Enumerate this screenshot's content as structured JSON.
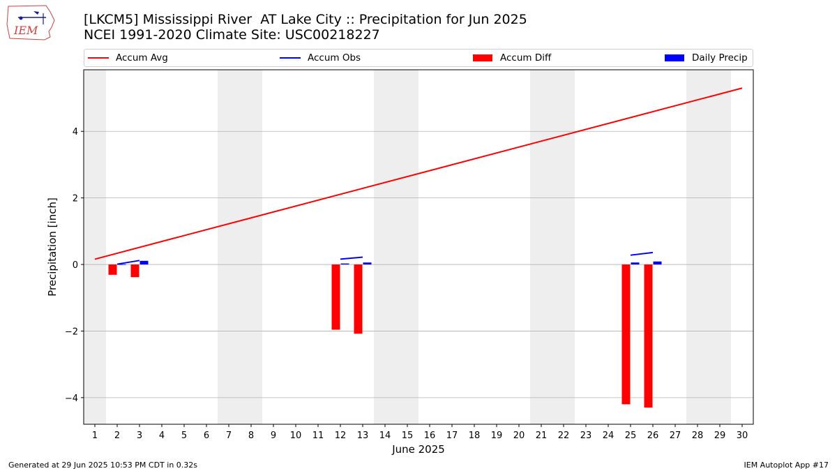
{
  "header": {
    "title_line1": "[LKCM5] Mississippi River  AT Lake City :: Precipitation for Jun 2025",
    "title_line2": "NCEI 1991-2020 Climate Site: USC00218227",
    "logo_text": "IEM"
  },
  "footer": {
    "generated": "Generated at 29 Jun 2025 10:53 PM CDT in 0.32s",
    "app": "IEM Autoplot App #17"
  },
  "colors": {
    "accum_avg": "#ff0000",
    "accum_obs": "#0000ff",
    "accum_diff": "#ff0000",
    "daily_precip": "#0000ff",
    "weekend_band": "#eeeeee",
    "grid": "#b0b0b0"
  },
  "chart_data": {
    "type": "bar",
    "title": "[LKCM5] Mississippi River  AT Lake City :: Precipitation for Jun 2025",
    "subtitle": "NCEI 1991-2020 Climate Site: USC00218227",
    "xlabel": "June 2025",
    "ylabel": "Precipitation [inch]",
    "xlim": [
      0.5,
      30.5
    ],
    "ylim": [
      -4.8,
      5.85
    ],
    "grid": "horizontal",
    "legend_position": "top",
    "x_ticks": [
      1,
      2,
      3,
      4,
      5,
      6,
      7,
      8,
      9,
      10,
      11,
      12,
      13,
      14,
      15,
      16,
      17,
      18,
      19,
      20,
      21,
      22,
      23,
      24,
      25,
      26,
      27,
      28,
      29,
      30
    ],
    "y_ticks": [
      -4,
      -2,
      0,
      2,
      4
    ],
    "y_tick_labels": [
      "−4",
      "−2",
      "0",
      "2",
      "4"
    ],
    "weekend_shading": [
      [
        0.5,
        1.5
      ],
      [
        6.5,
        8.5
      ],
      [
        13.5,
        15.5
      ],
      [
        20.5,
        22.5
      ],
      [
        27.5,
        29.5
      ]
    ],
    "series": [
      {
        "name": "Accum Avg",
        "kind": "line",
        "x": [
          1,
          30
        ],
        "y": [
          0.16,
          5.3
        ]
      },
      {
        "name": "Accum Obs",
        "kind": "line_segments",
        "segments": [
          {
            "x": [
              2,
              3
            ],
            "y": [
              0.01,
              0.12
            ]
          },
          {
            "x": [
              12,
              13
            ],
            "y": [
              0.16,
              0.22
            ]
          },
          {
            "x": [
              25,
              26
            ],
            "y": [
              0.28,
              0.36
            ]
          }
        ]
      },
      {
        "name": "Accum Diff",
        "kind": "bar",
        "x": [
          2,
          3,
          12,
          13,
          25,
          26
        ],
        "y": [
          -0.31,
          -0.38,
          -1.96,
          -2.08,
          -4.2,
          -4.3
        ]
      },
      {
        "name": "Daily Precip",
        "kind": "bar",
        "x": [
          2,
          3,
          12,
          13,
          25,
          26
        ],
        "y": [
          0.01,
          0.11,
          0.03,
          0.06,
          0.06,
          0.09
        ]
      }
    ]
  }
}
